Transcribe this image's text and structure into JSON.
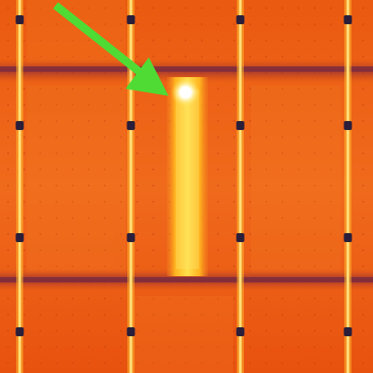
{
  "image": {
    "subject": "thermal-solar-panel-array",
    "colors": {
      "background": "#e8520f",
      "cell_mid": "#f0661a",
      "cell_dark": "#e24a0c",
      "frame_dark": "#b13a1e",
      "frame_purple": "#8a2d3a",
      "busbar": "#ffb22a",
      "busbar_glow": "#ffe07a",
      "hot_column": "#ffc41e",
      "hot_column_core": "#ffe24f",
      "hotspot": "#ffffff",
      "clip": "#2a1e3a",
      "arrow": "#4fdb34"
    },
    "annotation_icon": "green-arrow-icon"
  }
}
